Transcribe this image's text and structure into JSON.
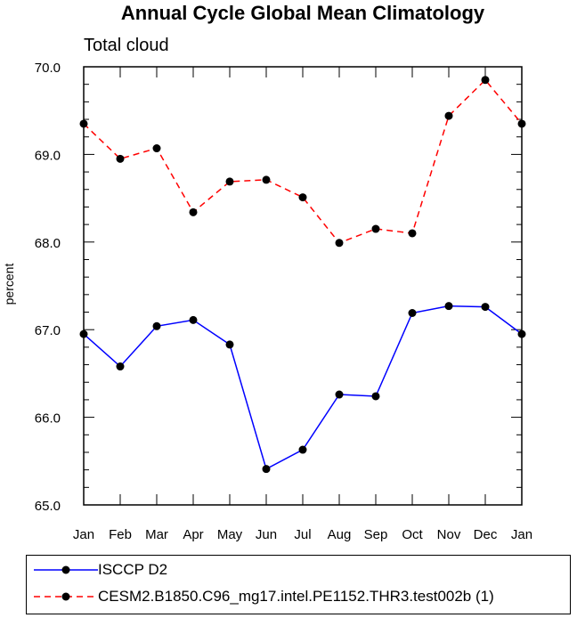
{
  "chart_data": {
    "type": "line",
    "title": "Annual Cycle Global Mean Climatology",
    "subtitle": "Total cloud",
    "xlabel": "",
    "ylabel": "percent",
    "categories": [
      "Jan",
      "Feb",
      "Mar",
      "Apr",
      "May",
      "Jun",
      "Jul",
      "Aug",
      "Sep",
      "Oct",
      "Nov",
      "Dec",
      "Jan"
    ],
    "ylim": [
      65.0,
      70.0
    ],
    "yticks": [
      "65.0",
      "66.0",
      "67.0",
      "68.0",
      "69.0",
      "70.0"
    ],
    "grid": false,
    "legend_position": "bottom",
    "series": [
      {
        "name": "ISCCP D2",
        "color": "#0000ff",
        "line_style": "solid",
        "marker": "filled-circle",
        "values": [
          66.95,
          66.58,
          67.04,
          67.11,
          66.83,
          65.41,
          65.63,
          66.26,
          66.24,
          67.19,
          67.27,
          67.26,
          66.95
        ]
      },
      {
        "name": "CESM2.B1850.C96_mg17.intel.PE1152.THR3.test002b (1)",
        "color": "#ff0000",
        "line_style": "dashed",
        "marker": "filled-circle",
        "values": [
          69.35,
          68.95,
          69.07,
          68.34,
          68.69,
          68.71,
          68.51,
          67.99,
          68.15,
          68.1,
          69.44,
          69.85,
          69.35
        ]
      }
    ]
  }
}
